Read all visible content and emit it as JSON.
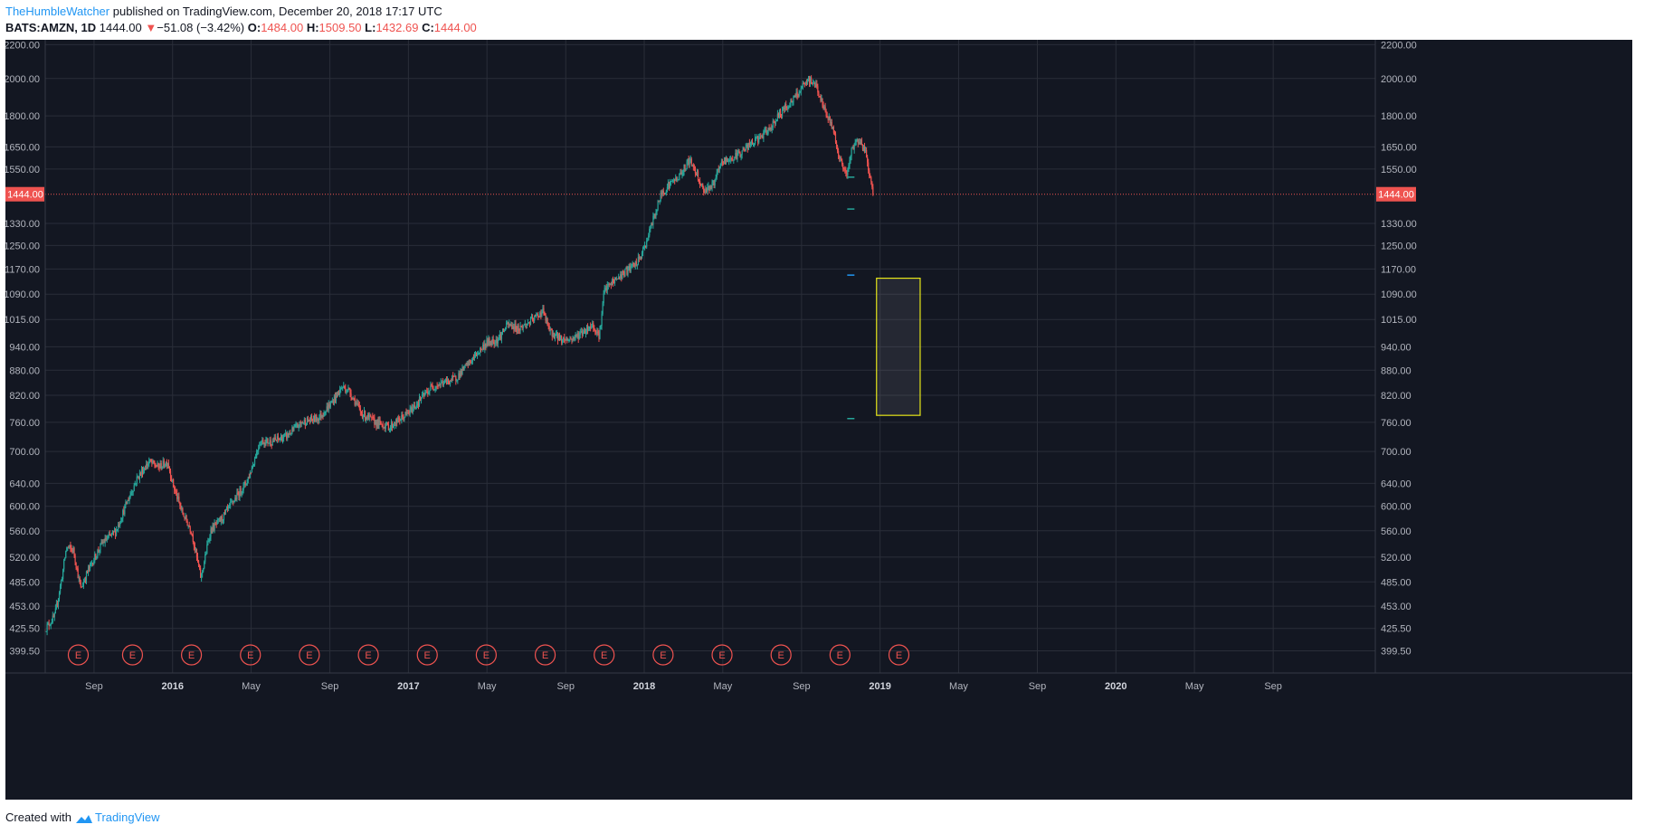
{
  "header": {
    "author": "TheHumbleWatcher",
    "published_text": " published on TradingView.com, December 20, 2018 17:17 UTC",
    "symbol": "BATS:AMZN, 1D",
    "last": "1444.00",
    "change_arrow": "▼",
    "change": "−51.08 (−3.42%)",
    "o_label": "O:",
    "o_value": "1484.00",
    "h_label": "H:",
    "h_value": "1509.50",
    "l_label": "L:",
    "l_value": "1432.69",
    "c_label": "C:",
    "c_value": "1444.00"
  },
  "footer": {
    "created_text": "Created with",
    "brand": "TradingView"
  },
  "colors": {
    "background": "#131722",
    "grid": "#2a2e39",
    "axis_text": "#b2b5be",
    "up": "#26a69a",
    "down": "#ef5350",
    "price_line": "#ef5350",
    "box": "#e6e619",
    "earnings": "#ef5350",
    "author": "#2196f3"
  },
  "chart_data": {
    "type": "candlestick",
    "symbol": "BATS:AMZN",
    "interval": "1D",
    "scale": "log",
    "grid": true,
    "ylim": [
      385,
      2230
    ],
    "xlim": [
      2015.46,
      2021.1
    ],
    "y_ticks": [
      399.5,
      425.5,
      453.0,
      485.0,
      520.0,
      560.0,
      600.0,
      640.0,
      700.0,
      760.0,
      820.0,
      880.0,
      940.0,
      1015.0,
      1090.0,
      1170.0,
      1250.0,
      1330.0,
      1444.0,
      1550.0,
      1650.0,
      1800.0,
      2000.0,
      2200.0
    ],
    "y_tick_labels": [
      "399.50",
      "425.50",
      "453.00",
      "485.00",
      "520.00",
      "560.00",
      "600.00",
      "640.00",
      "700.00",
      "760.00",
      "820.00",
      "880.00",
      "940.00",
      "1015.00",
      "1090.00",
      "1170.00",
      "1250.00",
      "1330.00",
      "1444.00",
      "1550.00",
      "1650.00",
      "1800.00",
      "2000.00",
      "2200.00"
    ],
    "x_ticks": [
      {
        "t": 2015.667,
        "label": "Sep",
        "bold": false
      },
      {
        "t": 2016.0,
        "label": "2016",
        "bold": true
      },
      {
        "t": 2016.333,
        "label": "May",
        "bold": false
      },
      {
        "t": 2016.667,
        "label": "Sep",
        "bold": false
      },
      {
        "t": 2017.0,
        "label": "2017",
        "bold": true
      },
      {
        "t": 2017.333,
        "label": "May",
        "bold": false
      },
      {
        "t": 2017.667,
        "label": "Sep",
        "bold": false
      },
      {
        "t": 2018.0,
        "label": "2018",
        "bold": true
      },
      {
        "t": 2018.333,
        "label": "May",
        "bold": false
      },
      {
        "t": 2018.667,
        "label": "Sep",
        "bold": false
      },
      {
        "t": 2019.0,
        "label": "2019",
        "bold": true
      },
      {
        "t": 2019.333,
        "label": "May",
        "bold": false
      },
      {
        "t": 2019.667,
        "label": "Sep",
        "bold": false
      },
      {
        "t": 2020.0,
        "label": "2020",
        "bold": true
      },
      {
        "t": 2020.333,
        "label": "May",
        "bold": false
      },
      {
        "t": 2020.667,
        "label": "Sep",
        "bold": false
      }
    ],
    "price_line": {
      "value": 1444.0,
      "label": "1444.00"
    },
    "price_path": [
      [
        2015.46,
        425
      ],
      [
        2015.5,
        440
      ],
      [
        2015.53,
        490
      ],
      [
        2015.55,
        535
      ],
      [
        2015.58,
        530
      ],
      [
        2015.61,
        475
      ],
      [
        2015.64,
        500
      ],
      [
        2015.7,
        540
      ],
      [
        2015.76,
        560
      ],
      [
        2015.8,
        600
      ],
      [
        2015.85,
        650
      ],
      [
        2015.9,
        680
      ],
      [
        2015.94,
        670
      ],
      [
        2015.98,
        680
      ],
      [
        2016.0,
        640
      ],
      [
        2016.04,
        590
      ],
      [
        2016.08,
        560
      ],
      [
        2016.12,
        490
      ],
      [
        2016.16,
        560
      ],
      [
        2016.21,
        580
      ],
      [
        2016.26,
        610
      ],
      [
        2016.31,
        640
      ],
      [
        2016.33,
        660
      ],
      [
        2016.37,
        720
      ],
      [
        2016.42,
        720
      ],
      [
        2016.48,
        730
      ],
      [
        2016.55,
        760
      ],
      [
        2016.62,
        770
      ],
      [
        2016.67,
        800
      ],
      [
        2016.72,
        840
      ],
      [
        2016.75,
        830
      ],
      [
        2016.8,
        780
      ],
      [
        2016.86,
        760
      ],
      [
        2016.92,
        750
      ],
      [
        2017.0,
        780
      ],
      [
        2017.05,
        810
      ],
      [
        2017.1,
        840
      ],
      [
        2017.15,
        850
      ],
      [
        2017.2,
        860
      ],
      [
        2017.26,
        900
      ],
      [
        2017.33,
        950
      ],
      [
        2017.38,
        960
      ],
      [
        2017.42,
        1000
      ],
      [
        2017.47,
        990
      ],
      [
        2017.52,
        1010
      ],
      [
        2017.57,
        1040
      ],
      [
        2017.6,
        980
      ],
      [
        2017.65,
        960
      ],
      [
        2017.69,
        960
      ],
      [
        2017.74,
        980
      ],
      [
        2017.78,
        1000
      ],
      [
        2017.81,
        970
      ],
      [
        2017.83,
        1100
      ],
      [
        2017.87,
        1130
      ],
      [
        2017.92,
        1160
      ],
      [
        2017.97,
        1190
      ],
      [
        2018.0,
        1240
      ],
      [
        2018.04,
        1350
      ],
      [
        2018.07,
        1440
      ],
      [
        2018.1,
        1480
      ],
      [
        2018.15,
        1520
      ],
      [
        2018.19,
        1590
      ],
      [
        2018.22,
        1540
      ],
      [
        2018.25,
        1460
      ],
      [
        2018.29,
        1480
      ],
      [
        2018.33,
        1580
      ],
      [
        2018.38,
        1600
      ],
      [
        2018.45,
        1660
      ],
      [
        2018.52,
        1720
      ],
      [
        2018.58,
        1820
      ],
      [
        2018.63,
        1880
      ],
      [
        2018.67,
        1950
      ],
      [
        2018.7,
        1990
      ],
      [
        2018.73,
        1960
      ],
      [
        2018.76,
        1840
      ],
      [
        2018.8,
        1740
      ],
      [
        2018.83,
        1590
      ],
      [
        2018.86,
        1520
      ],
      [
        2018.88,
        1640
      ],
      [
        2018.91,
        1690
      ],
      [
        2018.94,
        1620
      ],
      [
        2018.97,
        1444
      ]
    ],
    "gap_markers": [
      {
        "t": 2018.876,
        "price": 1515,
        "color": "#26a69a"
      },
      {
        "t": 2018.876,
        "price": 1385,
        "color": "#26a69a"
      },
      {
        "t": 2018.876,
        "price": 1150,
        "color": "#2196f3"
      },
      {
        "t": 2018.876,
        "price": 768,
        "color": "#26a69a"
      }
    ],
    "box": {
      "t0": 2018.985,
      "t1": 2019.17,
      "p_top": 1140,
      "p_bottom": 775
    },
    "earnings": [
      {
        "t": 2015.6,
        "label": "E"
      },
      {
        "t": 2015.83,
        "label": "E"
      },
      {
        "t": 2016.08,
        "label": "E"
      },
      {
        "t": 2016.33,
        "label": "E"
      },
      {
        "t": 2016.58,
        "label": "E"
      },
      {
        "t": 2016.83,
        "label": "E"
      },
      {
        "t": 2017.08,
        "label": "E"
      },
      {
        "t": 2017.33,
        "label": "E"
      },
      {
        "t": 2017.58,
        "label": "E"
      },
      {
        "t": 2017.83,
        "label": "E"
      },
      {
        "t": 2018.08,
        "label": "E"
      },
      {
        "t": 2018.33,
        "label": "E"
      },
      {
        "t": 2018.58,
        "label": "E"
      },
      {
        "t": 2018.83,
        "label": "E"
      },
      {
        "t": 2019.08,
        "label": "E"
      }
    ]
  }
}
